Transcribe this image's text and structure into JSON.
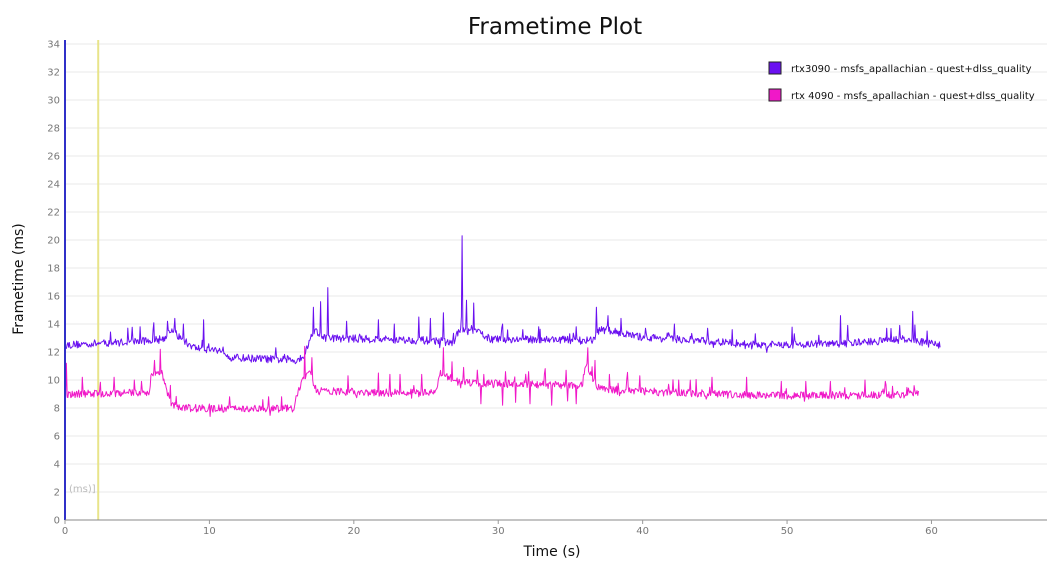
{
  "chart_data": {
    "type": "line",
    "title": "Frametime Plot",
    "xlabel": "Time (s)",
    "ylabel": "Frametime (ms)",
    "xlim": [
      0,
      68
    ],
    "ylim": [
      0,
      34
    ],
    "x_ticks": [
      0,
      10,
      20,
      30,
      40,
      50,
      60
    ],
    "y_ticks": [
      0,
      2,
      4,
      6,
      8,
      10,
      12,
      14,
      16,
      18,
      20,
      22,
      24,
      26,
      28,
      30,
      32,
      34
    ],
    "grid": true,
    "legend_position": "top-right",
    "overlay_label": "(ms)]",
    "marker_line_x": 2.3,
    "colors": {
      "marker_line": "#e8e48a",
      "left_axis": "#3030c8",
      "grid": "#e8e8e8"
    },
    "series": [
      {
        "name": "rtx3090 - msfs_apallachian - quest+dlss_quality",
        "color": "#6a10f0",
        "x_end": 60.6,
        "baseline": [
          [
            0,
            12.5
          ],
          [
            2,
            12.6
          ],
          [
            4,
            12.7
          ],
          [
            5.5,
            12.8
          ],
          [
            6.8,
            12.9
          ],
          [
            7.3,
            13.6
          ],
          [
            8.2,
            12.8
          ],
          [
            9,
            12.3
          ],
          [
            11,
            12.1
          ],
          [
            11.5,
            11.6
          ],
          [
            14,
            11.5
          ],
          [
            16,
            11.4
          ],
          [
            16.6,
            11.8
          ],
          [
            17.2,
            13.6
          ],
          [
            18,
            13.0
          ],
          [
            22,
            12.9
          ],
          [
            26,
            12.8
          ],
          [
            26.8,
            12.6
          ],
          [
            27.3,
            13.5
          ],
          [
            28.5,
            13.5
          ],
          [
            29.5,
            12.9
          ],
          [
            34,
            12.9
          ],
          [
            36.5,
            12.8
          ],
          [
            37,
            13.6
          ],
          [
            38.4,
            13.4
          ],
          [
            39.5,
            13.1
          ],
          [
            44,
            12.8
          ],
          [
            48,
            12.5
          ],
          [
            54,
            12.6
          ],
          [
            58,
            12.9
          ],
          [
            60.6,
            12.5
          ]
        ],
        "spikes": [
          [
            5.2,
            13.8
          ],
          [
            6.1,
            13.6
          ],
          [
            7.1,
            14.2
          ],
          [
            7.6,
            14.4
          ],
          [
            8.2,
            14.0
          ],
          [
            9.6,
            14.3
          ],
          [
            14.6,
            12.3
          ],
          [
            17.2,
            15.2
          ],
          [
            17.7,
            15.6
          ],
          [
            18.2,
            16.6
          ],
          [
            19.5,
            14.2
          ],
          [
            21.7,
            14.3
          ],
          [
            22.8,
            14.0
          ],
          [
            24.5,
            14.5
          ],
          [
            25.3,
            14.4
          ],
          [
            26.2,
            14.8
          ],
          [
            27.5,
            20.3
          ],
          [
            27.8,
            15.7
          ],
          [
            28.3,
            15.5
          ],
          [
            30.3,
            14.0
          ],
          [
            31.7,
            13.6
          ],
          [
            32.8,
            13.8
          ],
          [
            35.4,
            13.8
          ],
          [
            36.8,
            15.2
          ],
          [
            37.6,
            14.6
          ],
          [
            38.5,
            14.4
          ],
          [
            40.2,
            13.7
          ],
          [
            42.2,
            14.0
          ],
          [
            44.5,
            13.7
          ],
          [
            46.2,
            13.6
          ],
          [
            47.8,
            13.3
          ],
          [
            50.5,
            13.3
          ],
          [
            52.2,
            13.2
          ],
          [
            53.7,
            14.6
          ],
          [
            54.2,
            13.9
          ],
          [
            57.8,
            13.9
          ],
          [
            58.7,
            14.9
          ],
          [
            59.7,
            13.5
          ]
        ]
      },
      {
        "name": "rtx 4090 - msfs_apallachian - quest+dlss_quality",
        "color": "#f018c8",
        "x_end": 59.1,
        "baseline": [
          [
            0,
            9.0
          ],
          [
            5.8,
            9.1
          ],
          [
            6.0,
            10.4
          ],
          [
            6.7,
            10.6
          ],
          [
            7.3,
            8.4
          ],
          [
            8.0,
            8.0
          ],
          [
            12,
            7.95
          ],
          [
            15.8,
            7.95
          ],
          [
            16.3,
            9.6
          ],
          [
            16.9,
            10.8
          ],
          [
            17.4,
            9.2
          ],
          [
            22,
            9.1
          ],
          [
            25.7,
            9.05
          ],
          [
            26.0,
            10.5
          ],
          [
            27.2,
            9.9
          ],
          [
            28.5,
            9.8
          ],
          [
            32,
            9.7
          ],
          [
            35.8,
            9.6
          ],
          [
            36.1,
            11.2
          ],
          [
            36.8,
            9.5
          ],
          [
            38,
            9.3
          ],
          [
            42,
            9.1
          ],
          [
            48,
            8.9
          ],
          [
            52,
            8.9
          ],
          [
            56,
            8.9
          ],
          [
            59.1,
            9.0
          ]
        ],
        "spikes": [
          [
            0.1,
            11.2
          ],
          [
            1.2,
            10.2
          ],
          [
            3.4,
            10.2
          ],
          [
            4.8,
            10.0
          ],
          [
            5.3,
            9.9
          ],
          [
            6.2,
            11.4
          ],
          [
            6.6,
            12.2
          ],
          [
            11.4,
            8.8
          ],
          [
            13.7,
            8.6
          ],
          [
            15.0,
            8.8
          ],
          [
            16.6,
            12.4
          ],
          [
            17.1,
            11.6
          ],
          [
            19.6,
            10.3
          ],
          [
            21.7,
            10.5
          ],
          [
            22.5,
            10.4
          ],
          [
            23.2,
            10.4
          ],
          [
            24.7,
            10.4
          ],
          [
            26.2,
            12.3
          ],
          [
            26.8,
            11.3
          ],
          [
            27.6,
            10.9
          ],
          [
            29.0,
            10.4
          ],
          [
            30.5,
            10.6
          ],
          [
            32.1,
            10.6
          ],
          [
            34.7,
            10.7
          ],
          [
            36.2,
            12.3
          ],
          [
            36.7,
            11.4
          ],
          [
            37.7,
            10.4
          ],
          [
            39.8,
            10.3
          ],
          [
            42.5,
            10.0
          ],
          [
            44.8,
            10.2
          ],
          [
            47.2,
            10.2
          ],
          [
            49.6,
            9.9
          ],
          [
            51.3,
            9.9
          ],
          [
            53.0,
            9.9
          ],
          [
            55.4,
            10.0
          ],
          [
            56.8,
            9.9
          ],
          [
            58.8,
            9.6
          ]
        ],
        "dips": [
          [
            24.0,
            8.7
          ],
          [
            28.8,
            8.3
          ],
          [
            30.3,
            8.2
          ],
          [
            31.2,
            8.4
          ],
          [
            32.2,
            8.3
          ],
          [
            33.7,
            8.2
          ],
          [
            34.8,
            8.5
          ],
          [
            35.4,
            8.3
          ]
        ]
      }
    ]
  }
}
